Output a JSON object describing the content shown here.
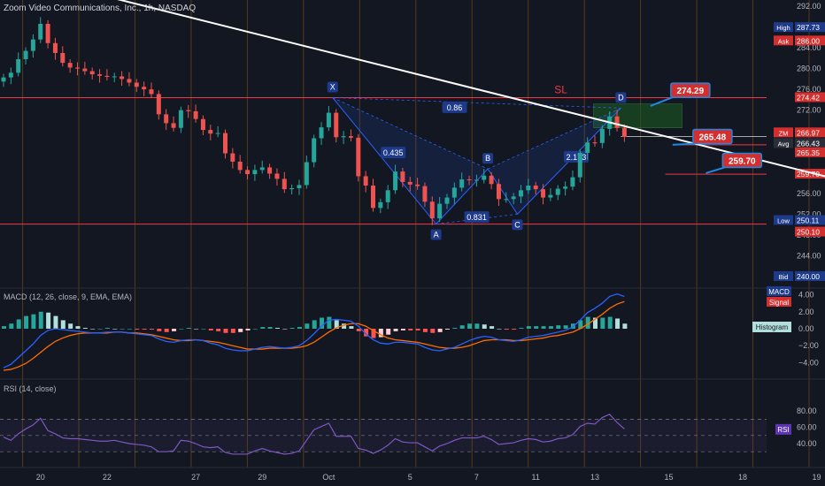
{
  "header": {
    "title": "Zoom Video Communications, Inc., 1h, NASDAQ"
  },
  "panes": {
    "macd_title": "MACD (12, 26, close, 9, EMA, EMA)",
    "rsi_title": "RSI (14, close)"
  },
  "colors": {
    "background": "#131722",
    "up": "#26a69a",
    "down": "#ef5350",
    "level_line": "#f23645",
    "trend_line": "#ffffff",
    "pattern": "#2962ff",
    "session_band": "#ff9800",
    "macd_line": "#2962ff",
    "signal_line": "#ff6d00",
    "rsi_line": "#7e57c2",
    "target_box": "#1b5e20"
  },
  "chart_data": [
    {
      "type": "candlestick",
      "title": "Zoom Video Communications, Inc., 1h, NASDAQ",
      "ylim": [
        240,
        292
      ],
      "y_ticks": [
        244,
        248,
        252,
        256,
        260,
        264,
        268,
        272,
        276,
        280,
        284,
        288,
        292
      ],
      "x_tick_labels": [
        {
          "label": "20",
          "bar": 5
        },
        {
          "label": "22",
          "bar": 14
        },
        {
          "label": "27",
          "bar": 26
        },
        {
          "label": "29",
          "bar": 35
        },
        {
          "label": "Oct",
          "bar": 44
        },
        {
          "label": "5",
          "bar": 55
        },
        {
          "label": "7",
          "bar": 64
        },
        {
          "label": "11",
          "bar": 72
        },
        {
          "label": "13",
          "bar": 80
        },
        {
          "label": "15",
          "bar": 90
        },
        {
          "label": "18",
          "bar": 100
        },
        {
          "label": "19",
          "bar": 110
        }
      ],
      "closes": [
        278.3,
        279.2,
        281.8,
        283.4,
        285.6,
        288.6,
        284.9,
        283.0,
        281.1,
        280.2,
        280.0,
        279.5,
        278.9,
        278.6,
        278.4,
        278.5,
        278.0,
        277.3,
        276.5,
        276.0,
        275.1,
        271.2,
        269.5,
        268.6,
        272.0,
        271.8,
        270.3,
        268.2,
        267.5,
        267.6,
        263.7,
        262.1,
        260.5,
        259.7,
        260.5,
        261.0,
        259.8,
        258.8,
        256.8,
        257.0,
        257.6,
        262.0,
        266.6,
        268.7,
        271.5,
        266.8,
        267.0,
        266.7,
        259.3,
        257.5,
        253.2,
        254.3,
        256.6,
        260.2,
        258.2,
        257.7,
        257.4,
        254.4,
        251.2,
        254.0,
        255.2,
        257.1,
        258.7,
        258.6,
        258.6,
        259.4,
        257.8,
        254.9,
        254.9,
        255.4,
        256.6,
        257.5,
        256.8,
        255.2,
        255.7,
        256.9,
        257.3,
        259.1,
        263.8,
        265.8,
        265.7,
        268.4,
        270.8,
        268.6,
        266.9
      ],
      "series": [
        {
          "name": "High",
          "values": [
            287.73
          ]
        },
        {
          "name": "Ask",
          "values": [
            286.0
          ]
        },
        {
          "name": "ZM",
          "values": [
            266.97
          ]
        },
        {
          "name": "Avg",
          "values": [
            266.43
          ]
        },
        {
          "name": "Low",
          "values": [
            250.11
          ]
        },
        {
          "name": "Bid",
          "values": [
            240.0
          ]
        }
      ],
      "horizontal_levels": [
        274.42,
        250.1,
        265.35,
        259.7
      ],
      "level_labels": {
        "stop_loss": "SL"
      },
      "targets": [
        {
          "label": "274.29",
          "value": 274.29
        },
        {
          "label": "265.48",
          "value": 265.48
        },
        {
          "label": "259.70",
          "value": 259.7
        }
      ],
      "trend_line": [
        {
          "bar": 0,
          "y": 299
        },
        {
          "bar": 120,
          "y": 256.3
        }
      ],
      "harmonic_pattern": {
        "points": [
          {
            "label": "X",
            "bar": 45,
            "y": 274.42
          },
          {
            "label": "A",
            "bar": 59,
            "y": 250.11
          },
          {
            "label": "B",
            "bar": 66,
            "y": 260.7
          },
          {
            "label": "C",
            "bar": 70,
            "y": 252.0
          },
          {
            "label": "D",
            "bar": 84,
            "y": 272.4
          }
        ],
        "ratios": [
          "0.86",
          "0.435",
          "0.831",
          "2.173"
        ]
      },
      "price_axis_labels": {
        "high": "287.73",
        "ask": "286.00",
        "zm": "266.97",
        "avg": "266.43",
        "p1": "274.42",
        "p2": "265.35",
        "p3": "259.70",
        "low": "250.11",
        "p4": "250.10",
        "bid": "240.00"
      },
      "price_axis_tags": {
        "high": "High",
        "ask": "Ask",
        "zm": "ZM",
        "avg": "Avg",
        "low": "Low",
        "bid": "Bid"
      }
    },
    {
      "type": "line",
      "title": "MACD (12, 26, close, 9, EMA, EMA)",
      "ylim": [
        -5,
        5
      ],
      "y_ticks": [
        "4.00",
        "2.00",
        "0.00",
        "−2.00",
        "−4.00"
      ],
      "series": [
        {
          "name": "MACD",
          "values": [
            -4.6,
            -4.2,
            -3.4,
            -2.6,
            -1.8,
            -0.8,
            -0.2,
            0.0,
            -0.1,
            -0.2,
            -0.3,
            -0.4,
            -0.5,
            -0.5,
            -0.4,
            -0.4,
            -0.4,
            -0.5,
            -0.6,
            -0.7,
            -0.8,
            -1.2,
            -1.5,
            -1.6,
            -1.4,
            -1.3,
            -1.3,
            -1.4,
            -1.7,
            -1.9,
            -2.3,
            -2.5,
            -2.6,
            -2.6,
            -2.4,
            -2.2,
            -2.1,
            -2.2,
            -2.3,
            -2.2,
            -2.0,
            -1.4,
            -0.6,
            0.3,
            1.0,
            1.1,
            1.0,
            0.9,
            0.3,
            -0.6,
            -1.3,
            -1.7,
            -1.8,
            -1.6,
            -1.6,
            -1.7,
            -1.8,
            -2.2,
            -2.5,
            -2.6,
            -2.4,
            -2.2,
            -1.8,
            -1.4,
            -1.1,
            -0.9,
            -1.0,
            -1.3,
            -1.4,
            -1.5,
            -1.3,
            -1.0,
            -0.9,
            -0.8,
            -0.6,
            -0.4,
            -0.2,
            0.2,
            1.0,
            1.9,
            2.4,
            3.0,
            3.8,
            4.1,
            3.8
          ]
        },
        {
          "name": "Signal",
          "values": [
            -4.9,
            -4.8,
            -4.5,
            -4.1,
            -3.5,
            -2.8,
            -2.1,
            -1.5,
            -1.1,
            -0.8,
            -0.6,
            -0.5,
            -0.5,
            -0.5,
            -0.5,
            -0.4,
            -0.4,
            -0.5,
            -0.5,
            -0.6,
            -0.7,
            -0.9,
            -1.1,
            -1.3,
            -1.4,
            -1.4,
            -1.3,
            -1.4,
            -1.5,
            -1.6,
            -1.8,
            -2.0,
            -2.2,
            -2.4,
            -2.4,
            -2.4,
            -2.3,
            -2.3,
            -2.3,
            -2.3,
            -2.2,
            -2.0,
            -1.6,
            -1.0,
            -0.4,
            0.1,
            0.4,
            0.6,
            0.6,
            0.3,
            -0.2,
            -0.7,
            -1.1,
            -1.3,
            -1.4,
            -1.5,
            -1.6,
            -1.8,
            -2.0,
            -2.2,
            -2.3,
            -2.3,
            -2.2,
            -2.0,
            -1.7,
            -1.4,
            -1.3,
            -1.3,
            -1.3,
            -1.4,
            -1.4,
            -1.3,
            -1.2,
            -1.1,
            -0.9,
            -0.8,
            -0.6,
            -0.4,
            0.0,
            0.5,
            1.1,
            1.7,
            2.4,
            2.9,
            3.2
          ]
        },
        {
          "name": "Histogram",
          "values": [
            0.3,
            0.6,
            1.1,
            1.5,
            1.7,
            2.0,
            1.9,
            1.5,
            1.0,
            0.6,
            0.3,
            0.1,
            0.0,
            0.0,
            0.1,
            0.0,
            0.0,
            0.0,
            -0.1,
            -0.1,
            -0.1,
            -0.3,
            -0.4,
            -0.3,
            0.0,
            0.1,
            0.0,
            0.0,
            -0.2,
            -0.3,
            -0.5,
            -0.5,
            -0.4,
            -0.2,
            0.0,
            0.2,
            0.2,
            0.1,
            0.0,
            0.1,
            0.2,
            0.6,
            1.0,
            1.3,
            1.4,
            1.0,
            0.6,
            0.3,
            -0.3,
            -0.9,
            -1.1,
            -1.0,
            -0.7,
            -0.3,
            -0.2,
            -0.2,
            -0.2,
            -0.4,
            -0.5,
            -0.4,
            -0.1,
            0.1,
            0.4,
            0.6,
            0.6,
            0.5,
            0.3,
            0.0,
            -0.1,
            -0.1,
            0.1,
            0.3,
            0.3,
            0.3,
            0.3,
            0.4,
            0.4,
            0.6,
            1.0,
            1.4,
            1.3,
            1.3,
            1.4,
            1.2,
            0.6
          ]
        }
      ],
      "labels": {
        "macd": "MACD",
        "signal": "Signal",
        "histogram": "Histogram"
      }
    },
    {
      "type": "line",
      "title": "RSI (14, close)",
      "ylim": [
        30,
        82
      ],
      "y_ticks": [
        "80.00",
        "60.00",
        "40.00"
      ],
      "bands": [
        70,
        50,
        30
      ],
      "series": [
        {
          "name": "RSI",
          "values": [
            48,
            44,
            52,
            58,
            63,
            71,
            56,
            52,
            47,
            46,
            46,
            45,
            44,
            43,
            43,
            44,
            42,
            40,
            39,
            38,
            36,
            30,
            30,
            31,
            44,
            43,
            40,
            36,
            35,
            36,
            29,
            27,
            27,
            27,
            31,
            34,
            31,
            29,
            27,
            28,
            31,
            44,
            57,
            61,
            65,
            49,
            49,
            49,
            34,
            32,
            28,
            32,
            38,
            46,
            42,
            41,
            41,
            36,
            31,
            37,
            40,
            44,
            47,
            47,
            47,
            49,
            45,
            39,
            40,
            41,
            44,
            46,
            45,
            42,
            43,
            46,
            47,
            51,
            61,
            65,
            64,
            72,
            76,
            66,
            58
          ]
        }
      ],
      "labels": {
        "rsi": "RSI"
      }
    }
  ]
}
